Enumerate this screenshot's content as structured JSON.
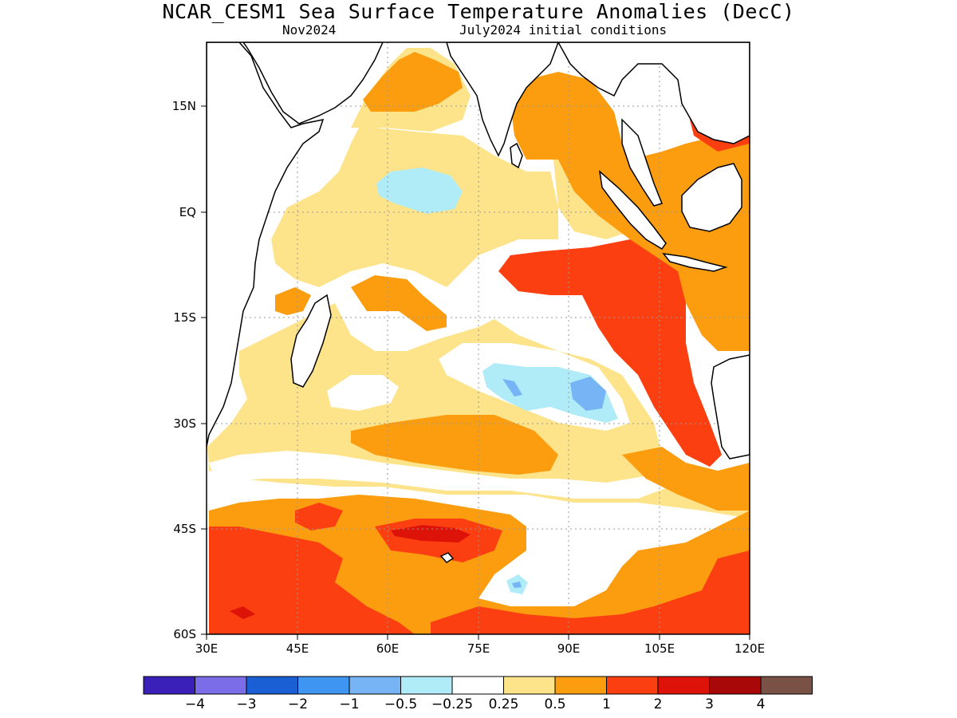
{
  "header": {
    "title": "NCAR_CESM1 Sea Surface Temperature Anomalies (DecC)",
    "valid_time": "Nov2024",
    "init": "July2024 initial conditions"
  },
  "axes": {
    "lat_ticks": [
      "15N",
      "EQ",
      "15S",
      "30S",
      "45S",
      "60S"
    ],
    "lon_ticks": [
      "30E",
      "45E",
      "60E",
      "75E",
      "90E",
      "105E",
      "120E"
    ],
    "lat_range": [
      -60,
      22
    ],
    "lon_range": [
      30,
      120
    ],
    "grid": "dotted"
  },
  "colorbar": {
    "colors": [
      "#3a1fb8",
      "#7b6ce8",
      "#1a60d4",
      "#3e95f2",
      "#76b4f5",
      "#b0ecf7",
      "#ffffff",
      "#fde38a",
      "#fb9d0e",
      "#fc3f11",
      "#dd1208",
      "#a80808",
      "#7a5145"
    ],
    "labels": [
      "−4",
      "−3",
      "−2",
      "−1",
      "−0.5",
      "−0.25",
      "0.25",
      "0.5",
      "1",
      "2",
      "3",
      "4"
    ]
  },
  "chart_data": {
    "type": "heatmap",
    "title": "NCAR_CESM1 Sea Surface Temperature Anomalies (DecC)",
    "subtitle": "Nov2024",
    "region": "Indian Ocean",
    "units": "DecC",
    "lon_range": [
      30,
      120
    ],
    "lat_range": [
      -60,
      22
    ],
    "levels": [
      -4,
      -3,
      -2,
      -1,
      -0.5,
      -0.25,
      0.25,
      0.5,
      1,
      2,
      3,
      4
    ],
    "features": [
      {
        "lon": 63,
        "lat": 5,
        "category": "-0.5 to -0.25"
      },
      {
        "lon": 86,
        "lat": -25,
        "category": "-0.5 to -0.25"
      },
      {
        "lon": 92,
        "lat": -26,
        "category": "-1 to -0.5"
      },
      {
        "lon": 81,
        "lat": -52,
        "category": "-0.5 to -0.25"
      },
      {
        "lon": 92,
        "lat": -9,
        "category": "1 to 2"
      },
      {
        "lon": 110,
        "lat": 12,
        "category": "1 to 2"
      },
      {
        "lon": 106,
        "lat": -28,
        "category": "1 to 2"
      },
      {
        "lon": 68,
        "lat": -45,
        "category": "2 to 3"
      },
      {
        "lon": 35,
        "lat": -53,
        "category": "2 to 3"
      },
      {
        "lon": 68,
        "lat": -33,
        "category": "0.5 to 1"
      },
      {
        "lon": 80,
        "lat": 15,
        "category": "0.5 to 1"
      },
      {
        "lon": 64,
        "lat": 19,
        "category": "0.5 to 1"
      }
    ]
  }
}
